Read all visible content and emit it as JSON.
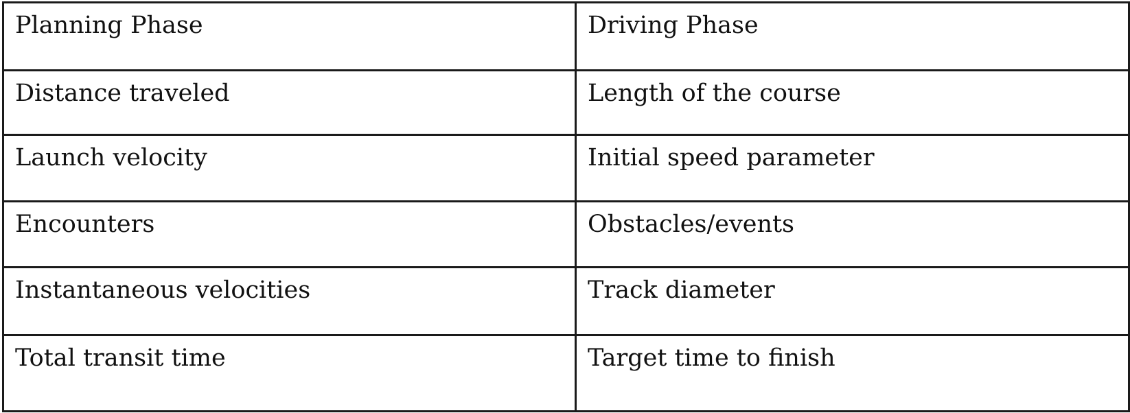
{
  "table": {
    "headers": [
      "Planning Phase",
      "Driving Phase"
    ],
    "rows": [
      [
        "Distance traveled",
        "Length of the course"
      ],
      [
        "Launch velocity",
        "Initial speed parameter"
      ],
      [
        "Encounters",
        "Obstacles/events"
      ],
      [
        "Instantaneous velocities",
        "Track diameter"
      ],
      [
        "Total transit time",
        "Target time to finish"
      ]
    ]
  }
}
